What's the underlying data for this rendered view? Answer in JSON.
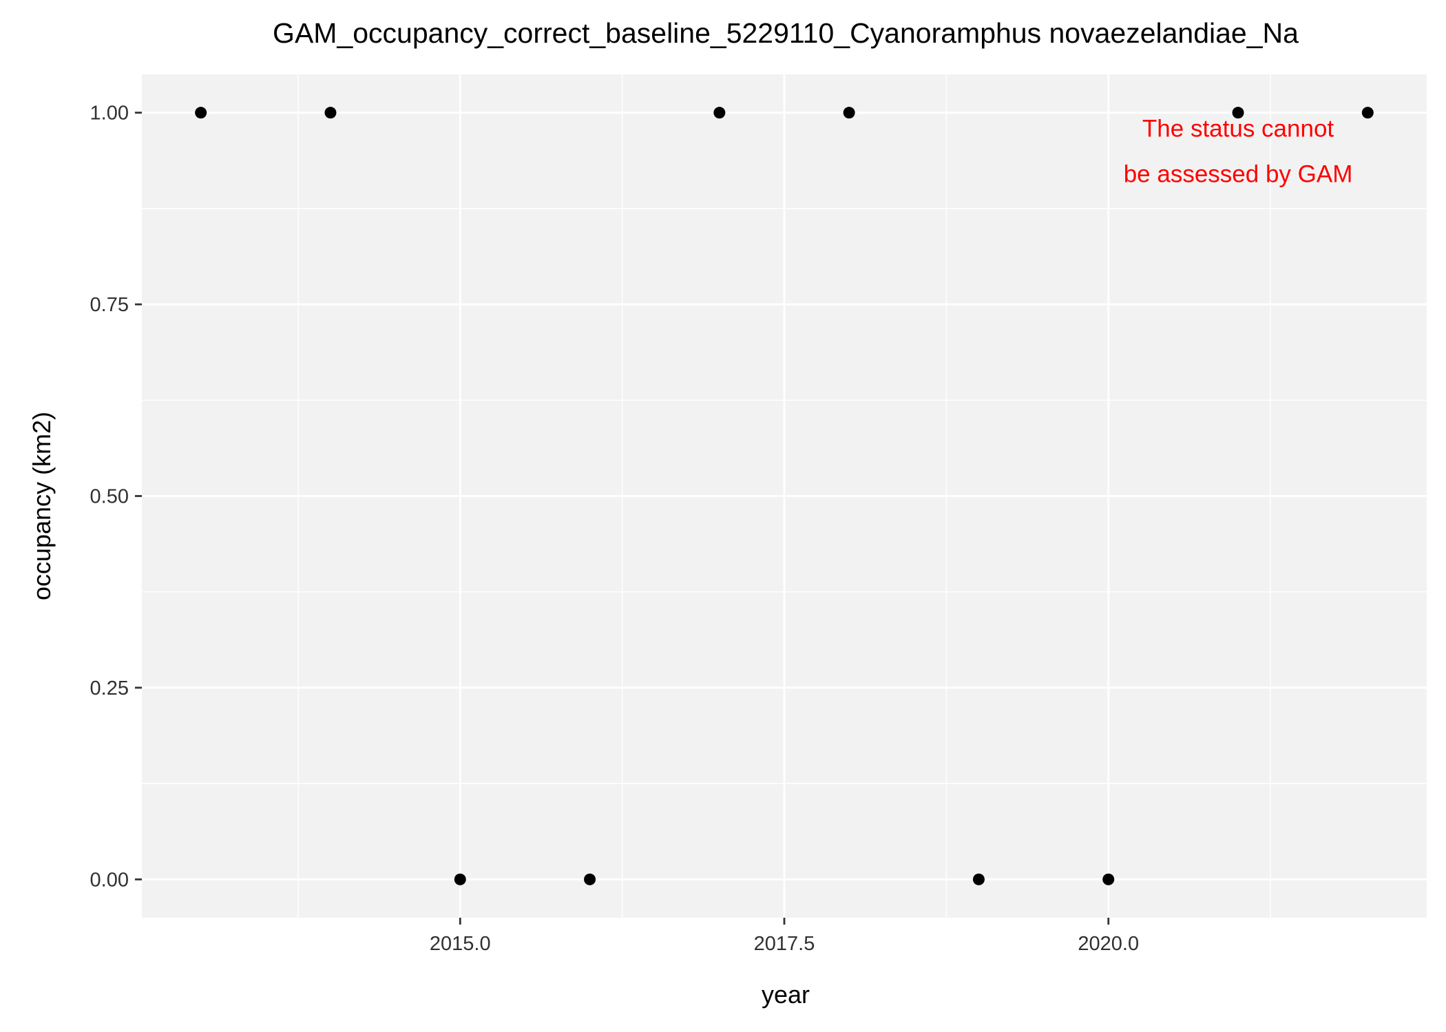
{
  "chart_data": {
    "type": "scatter",
    "title": "GAM_occupancy_correct_baseline_5229110_Cyanoramphus novaezelandiae_Na",
    "xlabel": "year",
    "ylabel": "occupancy (km2)",
    "x": [
      2013,
      2014,
      2015,
      2016,
      2017,
      2018,
      2019,
      2020,
      2021,
      2022
    ],
    "y": [
      1,
      1,
      0,
      0,
      1,
      1,
      0,
      0,
      1,
      1
    ],
    "xlim": [
      2012.545,
      2022.455
    ],
    "ylim": [
      -0.05,
      1.05
    ],
    "x_ticks": [
      2015.0,
      2017.5,
      2020.0
    ],
    "x_tick_labels": [
      "2015.0",
      "2017.5",
      "2020.0"
    ],
    "y_ticks": [
      0,
      0.25,
      0.5,
      0.75,
      1.0
    ],
    "y_tick_labels": [
      "0.00",
      "0.25",
      "0.50",
      "0.75",
      "1.00"
    ],
    "grid": true,
    "annotation": {
      "lines": [
        "The status cannot",
        "be assessed by GAM"
      ],
      "x": 2021,
      "y": 0.95,
      "color": "#ff0000"
    },
    "colors": {
      "panel_background": "#f2f2f2",
      "grid": "#ffffff",
      "point": "#000000"
    }
  }
}
